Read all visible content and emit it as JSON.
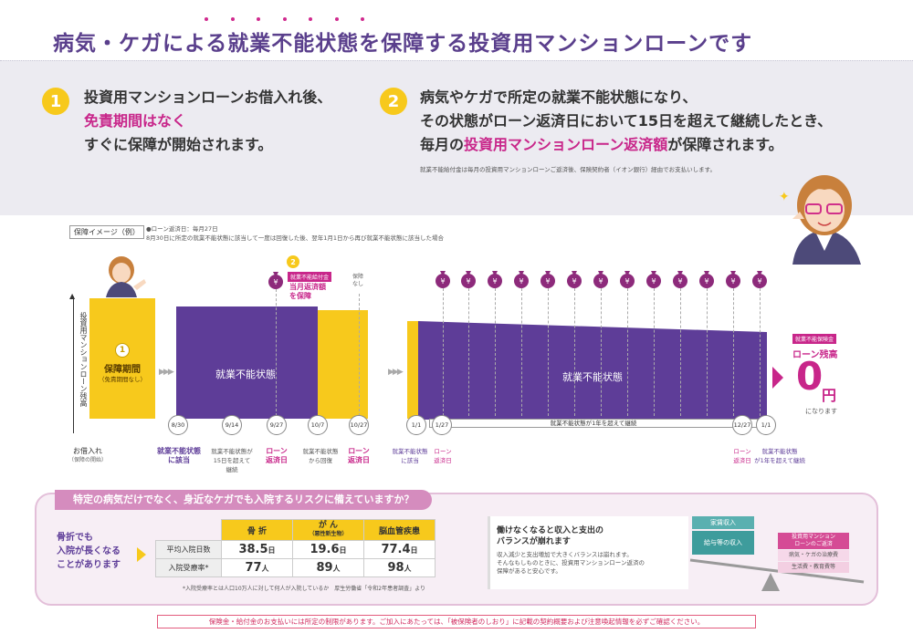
{
  "title": "病気・ケガによる就業不能状態を保障する投資用マンションローンです",
  "step1": {
    "num": "1",
    "line1": "投資用マンションローンお借入れ後、",
    "line2": "免責期間はなく",
    "line3": "すぐに保障が開始されます。"
  },
  "step2": {
    "num": "2",
    "line1": "病気やケガで所定の就業不能状態になり、",
    "line2": "その状態がローン返済日において15日を超えて継続したとき、",
    "line3a": "毎月の",
    "line3b": "投資用マンションローン返済額",
    "line3c": "が保障されます。",
    "note": "就業不能給付金は毎月の投資用マンションローンご返済後、保険契約者（イオン銀行）経由でお支払いします。"
  },
  "diagram": {
    "tag": "保障イメージ（例）",
    "note1": "●ローン返済日：毎月27日",
    "note2": "8月30日に所定の就業不能状態に該当して一度は回復した後、翌年1月1日から再び就業不能状態に該当した場合",
    "yaxis": "投資用マンションローン残高",
    "period_num": "1",
    "period_title": "保障期間",
    "period_sub": "（免責期間なし）",
    "state1": "就業不能状態",
    "state2": "就業不能状態",
    "callout_num": "2",
    "callout_tag": "就業不能給付金",
    "callout_text1": "当月返済額",
    "callout_text2": "を保障",
    "no_cover": "保障\nなし",
    "dates": [
      "8/30",
      "9/14",
      "9/27",
      "10/7",
      "10/27",
      "1/1",
      "1/27",
      "12/27",
      "1/1"
    ],
    "continue_label": "就業不能状態が1年を超えて継続",
    "cap_loan": "お借入れ",
    "cap_loan_sub": "（保障の開始）",
    "cap_a1": "就業不能状態",
    "cap_a2": "に該当",
    "cap_b": "就業不能状態が\n15日を超えて\n継続",
    "cap_c1": "ローン",
    "cap_c2": "返済日",
    "cap_d": "就業不能状態\nから回復",
    "cap_e1": "ローン",
    "cap_e2": "返済日",
    "cap_f1": "就業不能状態",
    "cap_f2": "に該当",
    "cap_g1": "ローン",
    "cap_g2": "返済日",
    "cap_h1": "ローン",
    "cap_h2": "返済日",
    "cap_i1": "就業不能状態",
    "cap_i2": "が1年を超えて継続",
    "result_tag": "就業不能保険金",
    "result_title": "ローン残高",
    "result_value": "0",
    "result_unit": "円",
    "result_sub": "になります",
    "yen": "¥"
  },
  "bottom": {
    "head": "特定の病気だけでなく、身近なケガでも入院するリスクに備えていますか？",
    "left_text": "骨折でも\n入院が長くなる\nことがあります",
    "cols": [
      "骨 折",
      "が ん",
      "脳血管疾患"
    ],
    "col_sub": "（悪性新生物）",
    "rows": [
      {
        "label": "平均入院日数",
        "values": [
          "38.5",
          "19.6",
          "77.4"
        ],
        "unit": "日"
      },
      {
        "label": "入院受療率*",
        "values": [
          "77",
          "89",
          "98"
        ],
        "unit": "人"
      }
    ],
    "footnote": "*入院受療率とは人口10万人に対して何人が入院しているか　厚生労働省「令和2年患者調査」より",
    "right_title": "働けなくなると収入と支出の\nバランスが崩れます",
    "right_text": "収入減少と支出増加で大きくバランスは崩れます。\nそんなもしものときに、投資用マンションローン返済の\n保障があると安心です。",
    "scale_box1": "家賃収入",
    "scale_box2": "給与等の収入",
    "scale_pink": "投資用マンション\nローンのご返済",
    "scale_item1": "病気・ケガの治療費",
    "scale_item2": "生活費・教育費等"
  },
  "disclaimer": "保険金・給付金のお支払いには所定の制限があります。ご加入にあたっては、「被保険者のしおり」に記載の契約概要および注意喚起情報を必ずご確認ください。",
  "colors": {
    "purple": "#5e3d98",
    "yellow": "#f7c91c",
    "magenta": "#c8268a",
    "pink": "#d58cbe"
  }
}
